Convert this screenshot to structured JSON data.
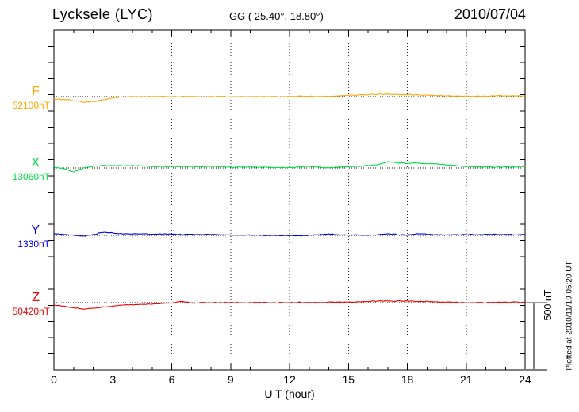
{
  "header": {
    "station": "Lycksele (LYC)",
    "coords": "GG ( 25.40°,  18.80°)",
    "date": "2010/07/04"
  },
  "axis": {
    "x_label": "U T (hour)",
    "x_ticks": [
      0,
      3,
      6,
      9,
      12,
      15,
      18,
      21,
      24
    ]
  },
  "scale_bar": {
    "label": "500 nT",
    "nT": 500
  },
  "plotted_note": "Plotted at 2010/11/19 05:20 UT",
  "chart_data": {
    "type": "line",
    "title": "Lycksele (LYC) magnetogram",
    "xlabel": "U T (hour)",
    "x_range": [
      0,
      24
    ],
    "sample_interval_hours": 0.5,
    "units": "nT",
    "scale_bar_nT": 500,
    "grid": "dotted vertical every 3 hours, dotted horizontal baseline per component",
    "series": [
      {
        "name": "F",
        "value_label": "52100nT",
        "baseline_nT": 52100,
        "color": "#FFA500",
        "offsets_nT": [
          -18,
          -21,
          -29,
          -41,
          -38,
          -24,
          -9,
          -3,
          0,
          0,
          0,
          0,
          0,
          0,
          0,
          0,
          0,
          0,
          0,
          0,
          0,
          0,
          0,
          0,
          0,
          3,
          3,
          0,
          3,
          6,
          9,
          12,
          15,
          18,
          18,
          15,
          15,
          12,
          12,
          9,
          6,
          3,
          3,
          3,
          3,
          6,
          6,
          6,
          6
        ]
      },
      {
        "name": "X",
        "value_label": "13060nT",
        "baseline_nT": 13060,
        "color": "#00DD44",
        "offsets_nT": [
          6,
          -6,
          -29,
          0,
          12,
          18,
          18,
          15,
          18,
          15,
          12,
          12,
          12,
          9,
          12,
          9,
          12,
          9,
          6,
          9,
          9,
          6,
          6,
          3,
          3,
          6,
          12,
          6,
          3,
          6,
          9,
          12,
          18,
          24,
          47,
          38,
          35,
          35,
          32,
          29,
          24,
          18,
          12,
          9,
          6,
          6,
          9,
          6,
          12
        ]
      },
      {
        "name": "Y",
        "value_label": "1330nT",
        "baseline_nT": 1330,
        "color": "#0000EE",
        "offsets_nT": [
          12,
          6,
          0,
          -6,
          6,
          24,
          18,
          12,
          12,
          12,
          9,
          9,
          9,
          6,
          9,
          6,
          6,
          6,
          3,
          3,
          3,
          0,
          0,
          0,
          0,
          -3,
          0,
          6,
          12,
          3,
          3,
          3,
          3,
          6,
          12,
          6,
          3,
          12,
          9,
          6,
          3,
          6,
          6,
          6,
          6,
          9,
          6,
          6,
          6
        ]
      },
      {
        "name": "Z",
        "value_label": "50420nT",
        "baseline_nT": 50420,
        "color": "#EE0000",
        "offsets_nT": [
          -18,
          -26,
          -38,
          -47,
          -41,
          -32,
          -24,
          -18,
          -15,
          -12,
          -9,
          -6,
          -3,
          12,
          -3,
          0,
          0,
          0,
          0,
          0,
          0,
          0,
          0,
          0,
          0,
          3,
          0,
          0,
          3,
          3,
          3,
          6,
          9,
          12,
          12,
          12,
          12,
          9,
          9,
          6,
          3,
          3,
          0,
          0,
          0,
          3,
          3,
          3,
          3
        ]
      }
    ]
  }
}
